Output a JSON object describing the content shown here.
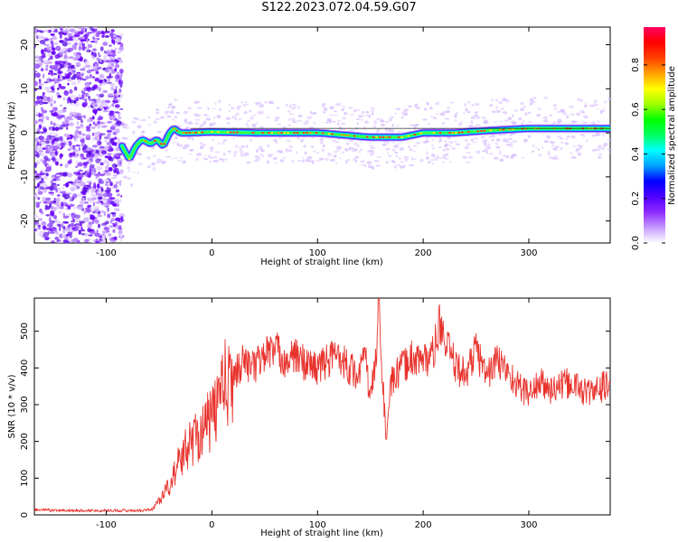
{
  "title": "S122.2023.072.04.59.G07",
  "chart_data": [
    {
      "type": "heatmap",
      "xlabel": "Height of straight line (km)",
      "ylabel": "Frequency (Hz)",
      "xlim": [
        -168,
        377
      ],
      "ylim": [
        -25,
        24
      ],
      "x_ticks": [
        -100,
        0,
        100,
        200,
        300
      ],
      "y_ticks": [
        20,
        10,
        0,
        -10,
        -20
      ],
      "colorbar": {
        "label": "Normalized spectral amplitude",
        "range": [
          0,
          0.97
        ],
        "ticks": [
          0.0,
          0.2,
          0.4,
          0.6,
          0.8
        ],
        "colors": [
          "#ffffff",
          "#c79bff",
          "#8e2bff",
          "#5000ff",
          "#0000ff",
          "#00a0ff",
          "#00ffff",
          "#00ff60",
          "#00ff00",
          "#a0ff00",
          "#ffff00",
          "#ffa000",
          "#ff4000",
          "#ff0000",
          "#ff0060"
        ]
      },
      "noise_region_x": [
        -168,
        -85
      ],
      "ridge": {
        "x": [
          -85,
          -78,
          -72,
          -66,
          -58,
          -52,
          -46,
          -40,
          -36,
          -30,
          -20,
          0,
          40,
          100,
          150,
          180,
          200,
          230,
          260,
          300,
          340,
          377
        ],
        "y": [
          -3,
          -6,
          -3,
          -1.5,
          -2.5,
          -1.5,
          -3,
          0,
          1,
          0,
          0,
          0.2,
          0,
          0,
          -1,
          -1,
          0,
          0,
          0.5,
          1,
          1,
          1
        ]
      }
    },
    {
      "type": "line",
      "xlabel": "Height of straight line (km)",
      "ylabel": "SNR (10 * v/v)",
      "xlim": [
        -168,
        377
      ],
      "ylim": [
        0,
        590
      ],
      "x_ticks": [
        -100,
        0,
        100,
        200,
        300
      ],
      "y_ticks": [
        0,
        100,
        200,
        300,
        400,
        500
      ],
      "line_color": "#e8322c",
      "series": [
        {
          "x": [
            -168,
            -150,
            -100,
            -70,
            -57,
            -50,
            -40,
            -30,
            -20,
            -10,
            0,
            5,
            10,
            15,
            20,
            30,
            40,
            50,
            60,
            70,
            80,
            90,
            100,
            110,
            120,
            130,
            140,
            145,
            150,
            155,
            158,
            160,
            163,
            165,
            170,
            180,
            190,
            200,
            210,
            215,
            220,
            230,
            240,
            250,
            260,
            270,
            280,
            290,
            300,
            310,
            320,
            330,
            340,
            350,
            360,
            370,
            377
          ],
          "y": [
            15,
            12,
            12,
            12,
            14,
            40,
            80,
            150,
            200,
            230,
            260,
            300,
            370,
            340,
            380,
            420,
            400,
            440,
            450,
            420,
            430,
            410,
            400,
            420,
            440,
            400,
            380,
            440,
            310,
            420,
            580,
            450,
            300,
            210,
            360,
            400,
            430,
            420,
            440,
            520,
            470,
            410,
            380,
            450,
            380,
            420,
            390,
            350,
            330,
            360,
            340,
            350,
            360,
            340,
            330,
            350,
            350
          ]
        }
      ]
    }
  ]
}
